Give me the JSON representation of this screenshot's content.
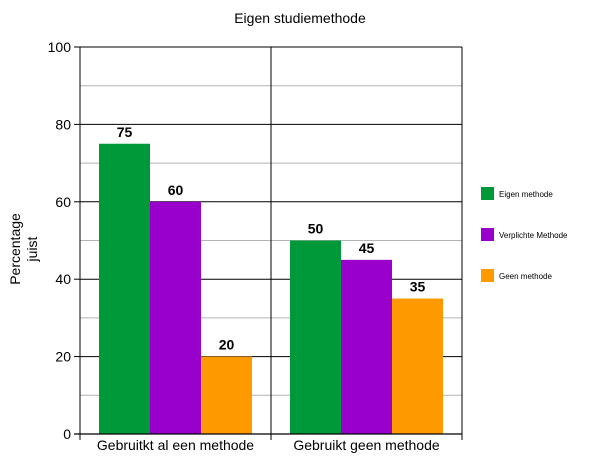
{
  "chart_data": {
    "type": "bar",
    "title": "Eigen studiemethode",
    "ylabel": "Percentage juist",
    "ylabel_lines": [
      "Percentage",
      "juist"
    ],
    "xlabel": "",
    "ylim": [
      0,
      100
    ],
    "yticks": [
      0,
      20,
      40,
      60,
      80,
      100
    ],
    "minor_grid": true,
    "legend_position": "right",
    "categories": [
      "Gebruitkt al een methode",
      "Gebruikt geen methode"
    ],
    "series": [
      {
        "name": "Eigen methode",
        "values": [
          75,
          50
        ],
        "color": "#00993a"
      },
      {
        "name": "Verplichte Methode",
        "values": [
          60,
          45
        ],
        "color": "#9900cc"
      },
      {
        "name": "Geen methode",
        "values": [
          20,
          35
        ],
        "color": "#ff9900"
      }
    ]
  }
}
